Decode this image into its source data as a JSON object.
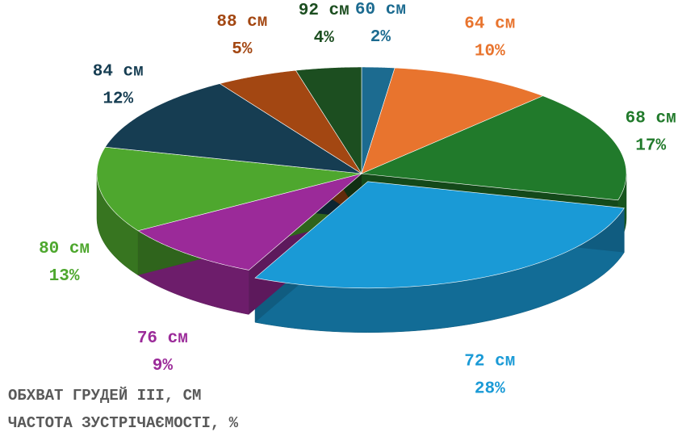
{
  "chart_data": {
    "type": "pie",
    "categories": [
      "60 см",
      "64 см",
      "68 см",
      "72 см",
      "76 см",
      "80 см",
      "84 см",
      "88 см",
      "92 см"
    ],
    "values": [
      2,
      10,
      17,
      28,
      9,
      13,
      12,
      5,
      4
    ],
    "value_labels": [
      "2%",
      "10%",
      "17%",
      "28%",
      "9%",
      "13%",
      "12%",
      "5%",
      "4%"
    ],
    "colors": [
      "#1c6b90",
      "#e8742e",
      "#217a2b",
      "#1a9ad6",
      "#9b2a99",
      "#4ea72e",
      "#163d52",
      "#a34712",
      "#1c4e20"
    ],
    "category_axis_title": "ОБХВАТ ГРУДЕЙ ІІІ, СМ",
    "value_axis_title": "ЧАСТОТА ЗУСТРІЧАЄМОСТІ, %",
    "exploded": "72 см"
  }
}
